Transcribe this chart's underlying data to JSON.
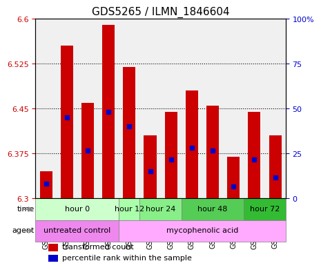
{
  "title": "GDS5265 / ILMN_1846604",
  "samples": [
    "GSM1133722",
    "GSM1133723",
    "GSM1133724",
    "GSM1133725",
    "GSM1133726",
    "GSM1133727",
    "GSM1133728",
    "GSM1133729",
    "GSM1133730",
    "GSM1133731",
    "GSM1133732",
    "GSM1133733"
  ],
  "bar_tops": [
    6.345,
    6.555,
    6.46,
    6.59,
    6.52,
    6.405,
    6.445,
    6.48,
    6.455,
    6.37,
    6.445,
    6.405
  ],
  "bar_bottom": 6.3,
  "blue_marker_values": [
    6.325,
    6.435,
    6.38,
    6.445,
    6.42,
    6.345,
    6.365,
    6.385,
    6.38,
    6.32,
    6.365,
    6.335
  ],
  "ylim": [
    6.3,
    6.6
  ],
  "yticks_left": [
    6.3,
    6.375,
    6.45,
    6.525,
    6.6
  ],
  "yticks_right": [
    0,
    25,
    50,
    75,
    100
  ],
  "ytick_labels_right": [
    "0",
    "25",
    "50",
    "75",
    "100%"
  ],
  "bar_color": "#cc0000",
  "blue_color": "#0000cc",
  "grid_color": "#000000",
  "bg_plot": "#ffffff",
  "time_groups": [
    {
      "label": "hour 0",
      "start": 0,
      "end": 3,
      "color": "#ccffcc"
    },
    {
      "label": "hour 12",
      "start": 4,
      "end": 4,
      "color": "#aaffaa"
    },
    {
      "label": "hour 24",
      "start": 5,
      "end": 6,
      "color": "#88ee88"
    },
    {
      "label": "hour 48",
      "start": 7,
      "end": 9,
      "color": "#55cc55"
    },
    {
      "label": "hour 72",
      "start": 10,
      "end": 11,
      "color": "#33bb33"
    }
  ],
  "agent_groups": [
    {
      "label": "untreated control",
      "start": 0,
      "end": 3,
      "color": "#ee88ee"
    },
    {
      "label": "mycophenolic acid",
      "start": 4,
      "end": 11,
      "color": "#ffaaff"
    }
  ],
  "legend_red_label": "transformed count",
  "legend_blue_label": "percentile rank within the sample",
  "xlabel_time": "time",
  "xlabel_agent": "agent",
  "bar_width": 0.6,
  "tick_label_color_left": "#cc0000",
  "tick_label_color_right": "#0000cc"
}
